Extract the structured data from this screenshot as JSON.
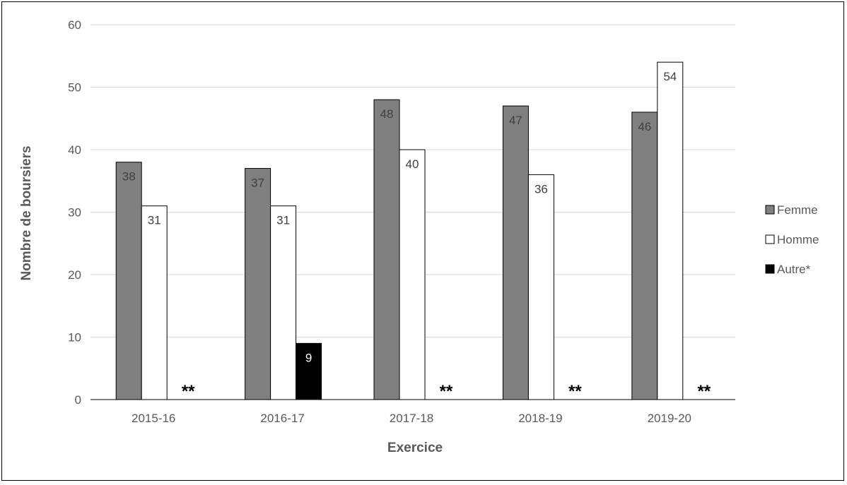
{
  "chart_data": {
    "type": "bar",
    "title": "",
    "xlabel": "Exercice",
    "ylabel": "Nombre de boursiers",
    "ylim": [
      0,
      60
    ],
    "yticks": [
      0,
      10,
      20,
      30,
      40,
      50,
      60
    ],
    "grid": true,
    "legend_position": "right",
    "categories": [
      "2015-16",
      "2016-17",
      "2017-18",
      "2018-19",
      "2019-20"
    ],
    "series": [
      {
        "name": "Femme",
        "color": "#808080",
        "values": [
          38,
          37,
          48,
          47,
          46
        ],
        "labels": [
          "38",
          "37",
          "48",
          "47",
          "46"
        ]
      },
      {
        "name": "Homme",
        "color": "#ffffff",
        "values": [
          31,
          31,
          40,
          36,
          54
        ],
        "labels": [
          "31",
          "31",
          "40",
          "36",
          "54"
        ]
      },
      {
        "name": "Autre*",
        "color": "#000000",
        "values": [
          null,
          9,
          null,
          null,
          null
        ],
        "labels": [
          "**",
          "9",
          "**",
          "**",
          "**"
        ]
      }
    ]
  }
}
